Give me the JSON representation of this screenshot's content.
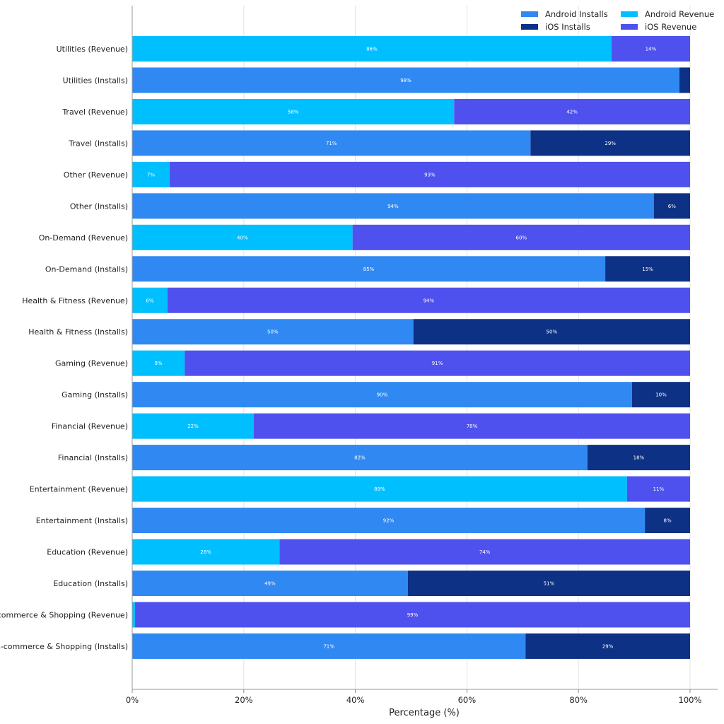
{
  "chart_data": {
    "type": "bar",
    "orientation": "horizontal",
    "stacked": true,
    "xlabel": "Percentage (%)",
    "xlim": [
      0,
      100
    ],
    "xticks": [
      "0%",
      "20%",
      "40%",
      "60%",
      "80%",
      "100%"
    ],
    "grid": true,
    "legend_placement": "top-right",
    "legend": [
      {
        "name": "Android Installs",
        "color": "#3089F2"
      },
      {
        "name": "iOS Installs",
        "color": "#0D3185"
      },
      {
        "name": "Android Revenue",
        "color": "#00BFFF"
      },
      {
        "name": "iOS Revenue",
        "color": "#4F51EE"
      }
    ],
    "categories": [
      "Utilities (Revenue)",
      "Utilities (Installs)",
      "Travel (Revenue)",
      "Travel (Installs)",
      "Other (Revenue)",
      "Other (Installs)",
      "On-Demand (Revenue)",
      "On-Demand (Installs)",
      "Health & Fitness (Revenue)",
      "Health & Fitness (Installs)",
      "Gaming (Revenue)",
      "Gaming (Installs)",
      "Financial (Revenue)",
      "Financial (Installs)",
      "Entertainment (Revenue)",
      "Entertainment (Installs)",
      "Education (Revenue)",
      "Education (Installs)",
      "E-commerce & Shopping (Revenue)",
      "E-commerce & Shopping (Installs)"
    ],
    "kinds": [
      "Revenue",
      "Installs",
      "Revenue",
      "Installs",
      "Revenue",
      "Installs",
      "Revenue",
      "Installs",
      "Revenue",
      "Installs",
      "Revenue",
      "Installs",
      "Revenue",
      "Installs",
      "Revenue",
      "Installs",
      "Revenue",
      "Installs",
      "Revenue",
      "Installs"
    ],
    "android_values": [
      85.9,
      98.1,
      57.7,
      71.4,
      6.7,
      93.5,
      39.5,
      84.8,
      6.3,
      50.4,
      9.4,
      89.6,
      21.8,
      81.6,
      88.7,
      91.9,
      26.4,
      49.4,
      0.5,
      70.5
    ],
    "ios_values": [
      14.1,
      1.9,
      42.3,
      28.6,
      93.3,
      6.5,
      60.5,
      15.2,
      93.7,
      49.6,
      90.6,
      10.4,
      78.2,
      18.4,
      11.3,
      8.1,
      73.6,
      50.6,
      99.5,
      29.5
    ],
    "android_labels": [
      "86%",
      "98%",
      "58%",
      "71%",
      "7%",
      "94%",
      "40%",
      "85%",
      "6%",
      "50%",
      "9%",
      "90%",
      "22%",
      "82%",
      "89%",
      "92%",
      "26%",
      "49%",
      "",
      "71%"
    ],
    "ios_labels": [
      "14%",
      "",
      "42%",
      "29%",
      "93%",
      "6%",
      "60%",
      "15%",
      "94%",
      "50%",
      "91%",
      "10%",
      "78%",
      "18%",
      "11%",
      "8%",
      "74%",
      "51%",
      "99%",
      "29%"
    ]
  }
}
